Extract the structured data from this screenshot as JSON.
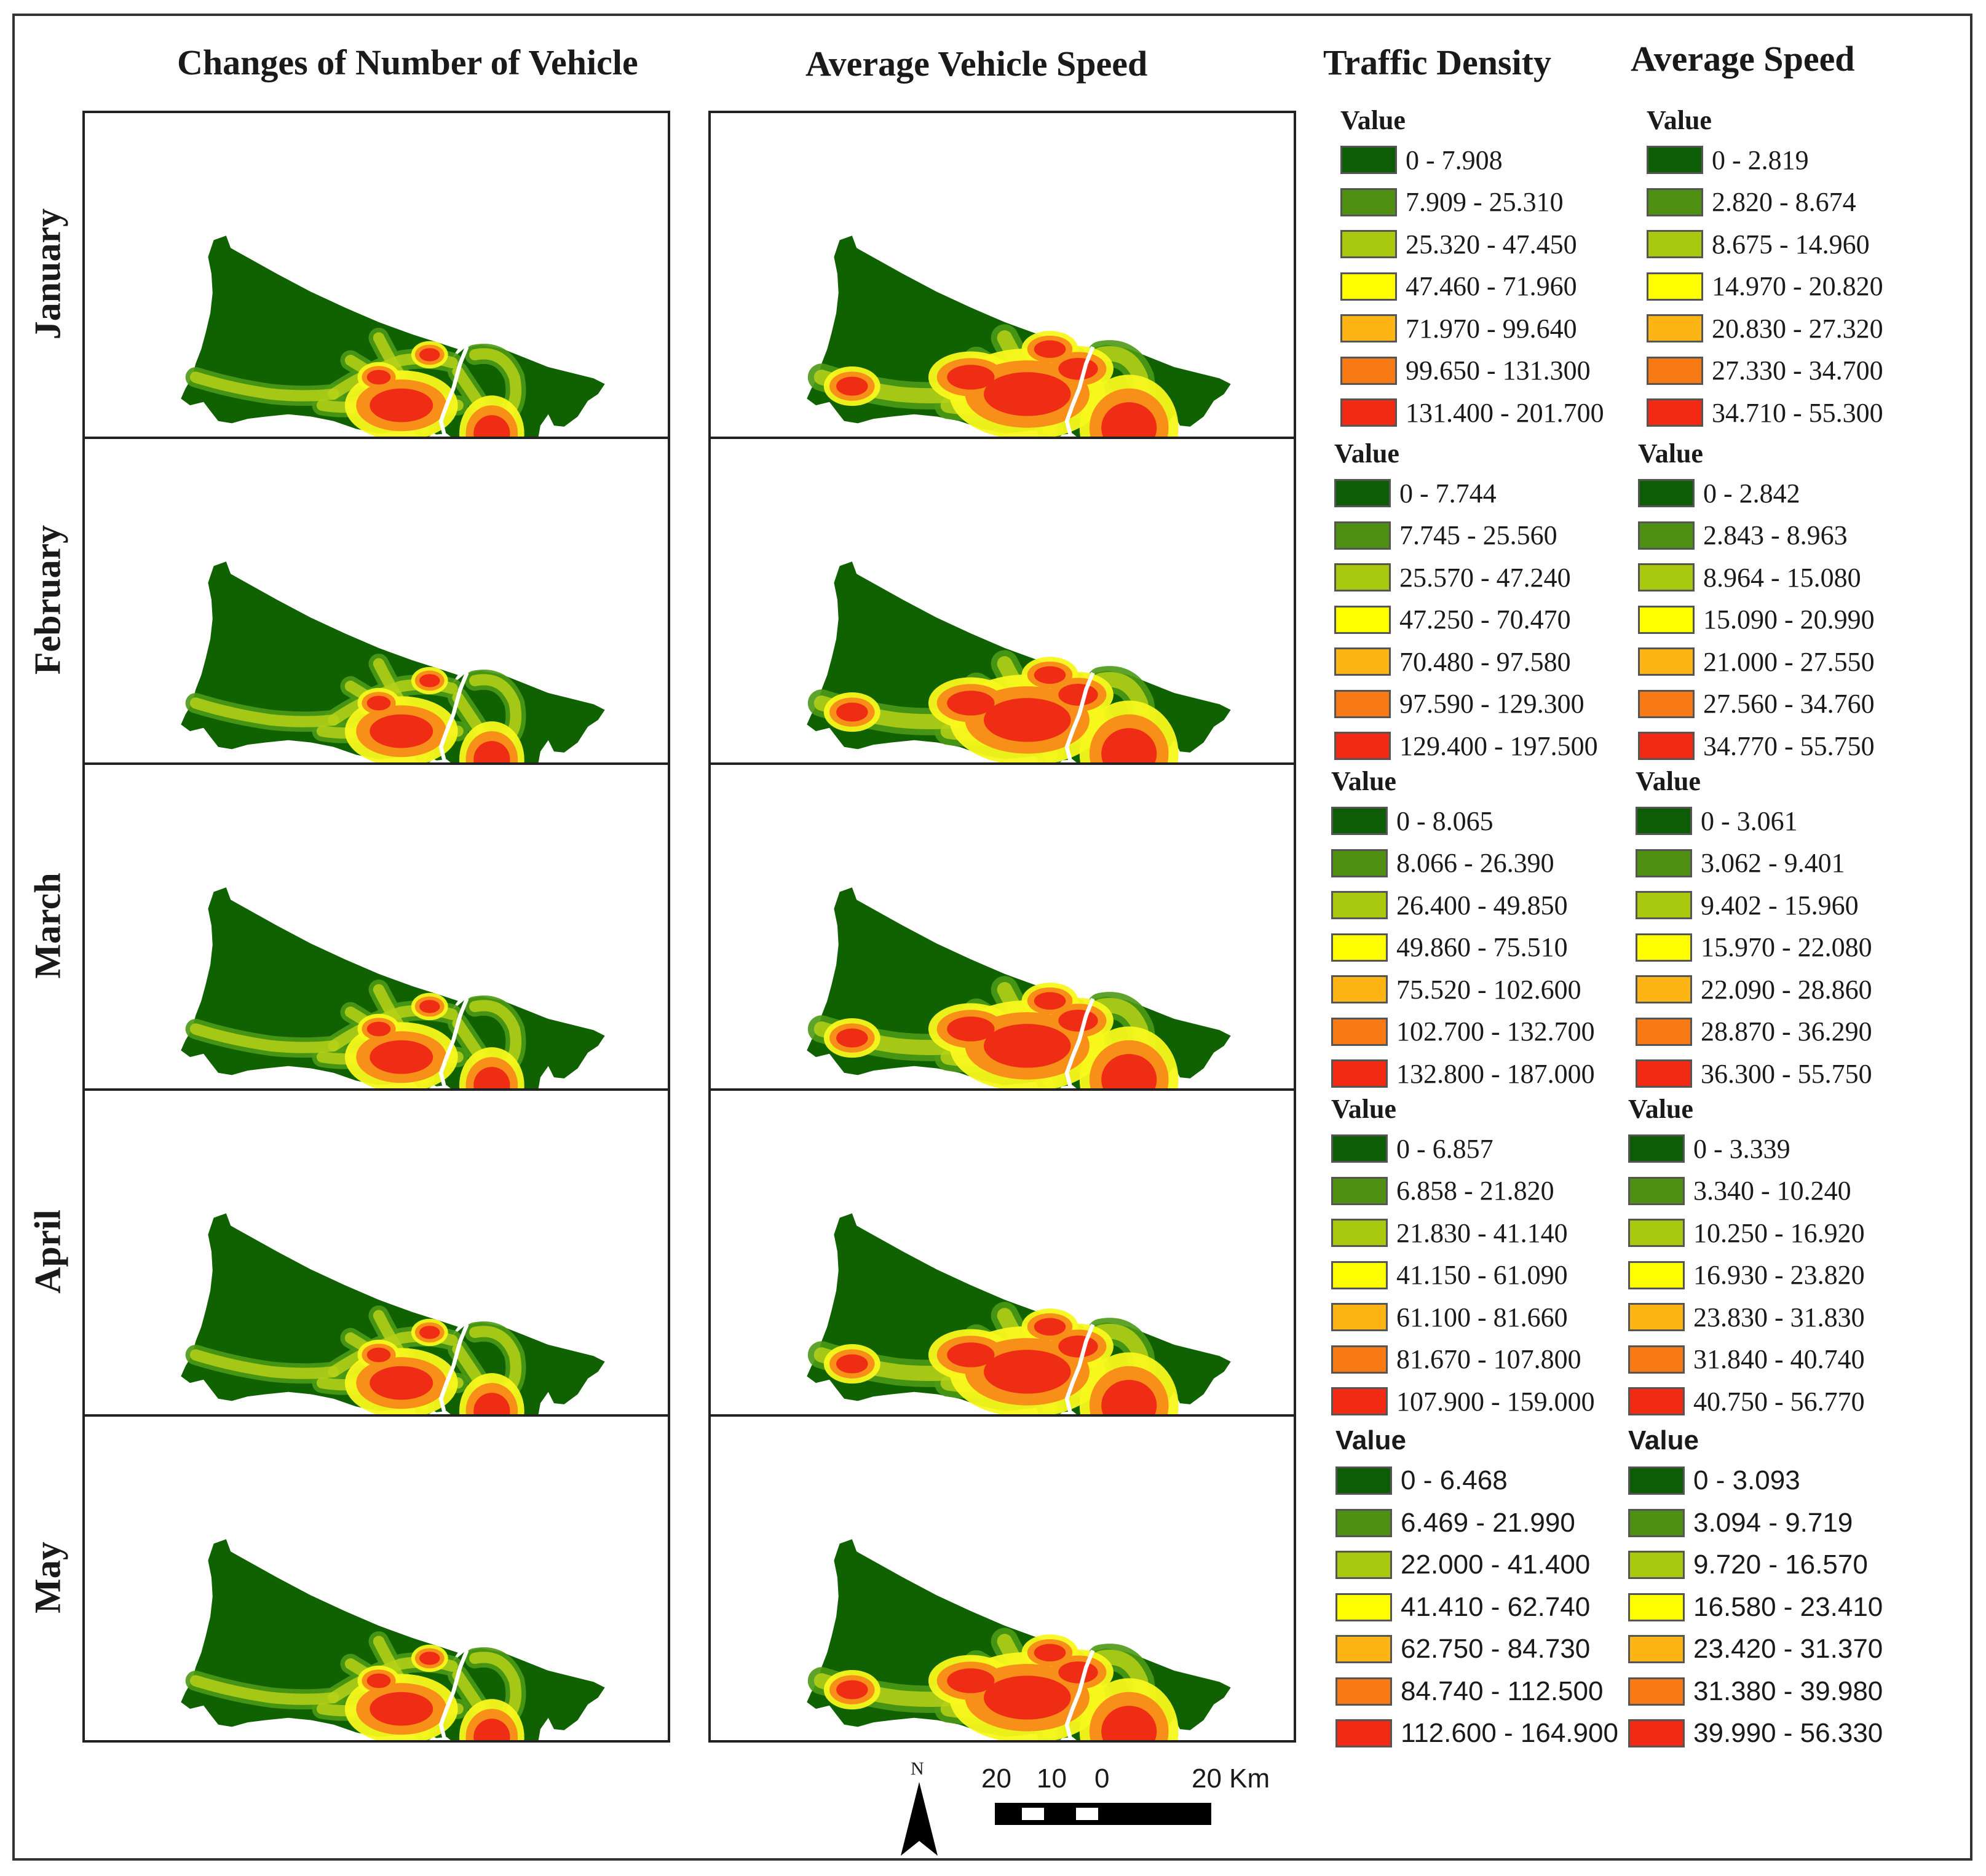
{
  "headers": {
    "col1": "Changes of Number of Vehicle",
    "col2": "Average Vehicle Speed",
    "legend1": "Traffic Density",
    "legend2": "Average Speed"
  },
  "months": [
    "January",
    "February",
    "March",
    "April",
    "May"
  ],
  "ramp_colors": [
    "#0d5c06",
    "#4f8f12",
    "#a8c90e",
    "#ffff00",
    "#fdb515",
    "#f77a14",
    "#f22a13"
  ],
  "map_colors": {
    "land": "#106200",
    "ring": "#4c9a15",
    "light": "#b6d118",
    "yellow": "#f8f81c",
    "orange": "#f78f18",
    "red": "#ef2c14",
    "outline": "#ffffff"
  },
  "legend_value_title": "Value",
  "traffic_density": [
    [
      "0 - 7.908",
      "7.909 - 25.310",
      "25.320 - 47.450",
      "47.460 - 71.960",
      "71.970 - 99.640",
      "99.650 - 131.300",
      "131.400 - 201.700"
    ],
    [
      "0 - 7.744",
      "7.745 - 25.560",
      "25.570 - 47.240",
      "47.250 - 70.470",
      "70.480 - 97.580",
      "97.590 - 129.300",
      "129.400 - 197.500"
    ],
    [
      "0 - 8.065",
      "8.066 - 26.390",
      "26.400 - 49.850",
      "49.860 - 75.510",
      "75.520 - 102.600",
      "102.700 - 132.700",
      "132.800 - 187.000"
    ],
    [
      "0 - 6.857",
      "6.858 - 21.820",
      "21.830 - 41.140",
      "41.150 - 61.090",
      "61.100 - 81.660",
      "81.670 - 107.800",
      "107.900 - 159.000"
    ],
    [
      "0 - 6.468",
      "6.469 - 21.990",
      "22.000 - 41.400",
      "41.410 - 62.740",
      "62.750 - 84.730",
      "84.740 - 112.500",
      "112.600 - 164.900"
    ]
  ],
  "average_speed": [
    [
      "0 - 2.819",
      "2.820 - 8.674",
      "8.675 - 14.960",
      "14.970 - 20.820",
      "20.830 - 27.320",
      "27.330 - 34.700",
      "34.710 - 55.300"
    ],
    [
      "0 - 2.842",
      "2.843 - 8.963",
      "8.964 - 15.080",
      "15.090 - 20.990",
      "21.000 - 27.550",
      "27.560 - 34.760",
      "34.770 - 55.750"
    ],
    [
      "0 - 3.061",
      "3.062 - 9.401",
      "9.402 - 15.960",
      "15.970 - 22.080",
      "22.090 - 28.860",
      "28.870 - 36.290",
      "36.300 - 55.750"
    ],
    [
      "0 - 3.339",
      "3.340 - 10.240",
      "10.250 - 16.920",
      "16.930 - 23.820",
      "23.830 - 31.830",
      "31.840 - 40.740",
      "40.750 - 56.770"
    ],
    [
      "0 - 3.093",
      "3.094 - 9.719",
      "9.720 - 16.570",
      "16.580 - 23.410",
      "23.420 - 31.370",
      "31.380 - 39.980",
      "39.990 - 56.330"
    ]
  ],
  "north_arrow": "N",
  "scale_bar": {
    "labels": [
      "20",
      "10",
      "0",
      "20 Km"
    ]
  }
}
